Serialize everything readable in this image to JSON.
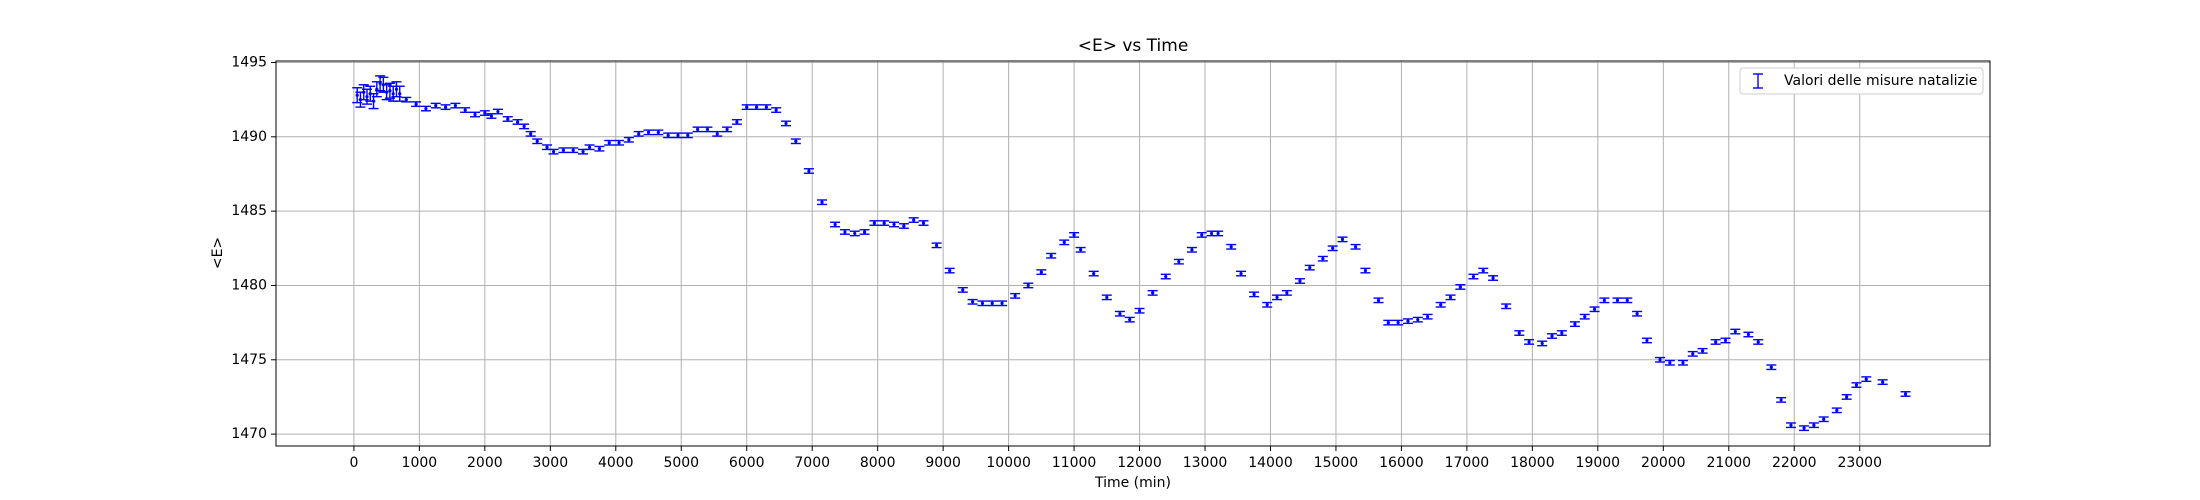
{
  "chart_data": {
    "type": "errorbar",
    "title": "<E> vs Time",
    "x_label": "Time (min)",
    "y_label": "<E>",
    "grid": true,
    "legend_position": "upper right",
    "xlim": [
      -1190,
      24990
    ],
    "ylim": [
      1469.2,
      1495.1
    ],
    "xticks": [
      0,
      1000,
      2000,
      3000,
      4000,
      5000,
      6000,
      7000,
      8000,
      9000,
      10000,
      11000,
      12000,
      13000,
      14000,
      15000,
      16000,
      17000,
      18000,
      19000,
      20000,
      21000,
      22000,
      23000
    ],
    "yticks": [
      1470,
      1475,
      1480,
      1485,
      1490,
      1495
    ],
    "series": [
      {
        "name": "Valori delle misure natalizie",
        "color": "#0000ff",
        "x": [
          50,
          100,
          150,
          200,
          250,
          300,
          350,
          400,
          450,
          500,
          550,
          600,
          650,
          700,
          800,
          950,
          1100,
          1250,
          1400,
          1550,
          1700,
          1850,
          2000,
          2100,
          2200,
          2350,
          2500,
          2600,
          2700,
          2800,
          2950,
          3050,
          3200,
          3350,
          3500,
          3600,
          3750,
          3900,
          4050,
          4200,
          4350,
          4500,
          4650,
          4800,
          4950,
          5100,
          5250,
          5400,
          5550,
          5700,
          5850,
          6000,
          6150,
          6300,
          6450,
          6600,
          6750,
          6950,
          7150,
          7350,
          7500,
          7650,
          7800,
          7950,
          8100,
          8250,
          8400,
          8550,
          8700,
          8900,
          9100,
          9300,
          9450,
          9600,
          9750,
          9900,
          10100,
          10300,
          10500,
          10650,
          10850,
          11000,
          11100,
          11300,
          11500,
          11700,
          11850,
          12000,
          12200,
          12400,
          12600,
          12800,
          12950,
          13100,
          13200,
          13400,
          13550,
          13750,
          13950,
          14100,
          14250,
          14450,
          14600,
          14800,
          14950,
          15100,
          15300,
          15450,
          15650,
          15800,
          15950,
          16100,
          16250,
          16400,
          16600,
          16750,
          16900,
          17100,
          17250,
          17400,
          17600,
          17800,
          17950,
          18150,
          18300,
          18450,
          18650,
          18800,
          18950,
          19100,
          19300,
          19450,
          19600,
          19750,
          19950,
          20100,
          20300,
          20450,
          20600,
          20800,
          20950,
          21100,
          21300,
          21450,
          21650,
          21800,
          21950,
          22150,
          22300,
          22450,
          22650,
          22800,
          22950,
          23100,
          23350,
          23700
        ],
        "values": [
          1492.8,
          1492.5,
          1493.0,
          1492.7,
          1492.9,
          1492.4,
          1493.2,
          1493.6,
          1493.5,
          1493.0,
          1493.1,
          1492.9,
          1493.2,
          1492.9,
          1492.5,
          1492.2,
          1491.9,
          1492.1,
          1492.0,
          1492.1,
          1491.8,
          1491.5,
          1491.6,
          1491.4,
          1491.7,
          1491.2,
          1491.0,
          1490.7,
          1490.2,
          1489.7,
          1489.3,
          1489.0,
          1489.1,
          1489.1,
          1489.0,
          1489.3,
          1489.2,
          1489.6,
          1489.6,
          1489.8,
          1490.2,
          1490.3,
          1490.3,
          1490.1,
          1490.1,
          1490.1,
          1490.5,
          1490.5,
          1490.2,
          1490.5,
          1491.0,
          1492.0,
          1492.0,
          1492.0,
          1491.8,
          1490.9,
          1489.7,
          1487.7,
          1485.6,
          1484.1,
          1483.6,
          1483.5,
          1483.6,
          1484.2,
          1484.2,
          1484.1,
          1484.0,
          1484.4,
          1484.2,
          1482.7,
          1481.0,
          1479.7,
          1478.9,
          1478.8,
          1478.8,
          1478.8,
          1479.3,
          1480.0,
          1480.9,
          1482.0,
          1482.9,
          1483.4,
          1482.4,
          1480.8,
          1479.2,
          1478.1,
          1477.7,
          1478.3,
          1479.5,
          1480.6,
          1481.6,
          1482.4,
          1483.4,
          1483.5,
          1483.5,
          1482.6,
          1480.8,
          1479.4,
          1478.7,
          1479.2,
          1479.5,
          1480.3,
          1481.2,
          1481.8,
          1482.5,
          1483.1,
          1482.6,
          1481.0,
          1479.0,
          1477.5,
          1477.5,
          1477.6,
          1477.7,
          1477.9,
          1478.7,
          1479.2,
          1479.9,
          1480.6,
          1481.0,
          1480.5,
          1478.6,
          1476.8,
          1476.2,
          1476.1,
          1476.6,
          1476.8,
          1477.4,
          1477.9,
          1478.4,
          1479.0,
          1479.0,
          1479.0,
          1478.1,
          1476.3,
          1475.0,
          1474.8,
          1474.8,
          1475.4,
          1475.6,
          1476.2,
          1476.3,
          1476.9,
          1476.7,
          1476.2,
          1474.5,
          1472.3,
          1470.6,
          1470.4,
          1470.6,
          1471.0,
          1471.6,
          1472.5,
          1473.3,
          1473.7,
          1473.5,
          1472.7
        ],
        "errors": [
          0.5,
          0.5,
          0.5,
          0.5,
          0.5,
          0.5,
          0.5,
          0.5,
          0.5,
          0.5,
          0.5,
          0.5,
          0.5,
          0.5,
          0.15,
          0.15,
          0.15,
          0.15,
          0.15,
          0.15,
          0.15,
          0.15,
          0.15,
          0.15,
          0.15,
          0.15,
          0.15,
          0.15,
          0.15,
          0.15,
          0.15,
          0.15,
          0.15,
          0.15,
          0.15,
          0.15,
          0.15,
          0.15,
          0.15,
          0.15,
          0.15,
          0.15,
          0.15,
          0.15,
          0.15,
          0.15,
          0.15,
          0.15,
          0.15,
          0.15,
          0.15,
          0.15,
          0.15,
          0.15,
          0.15,
          0.15,
          0.15,
          0.15,
          0.15,
          0.15,
          0.15,
          0.15,
          0.15,
          0.15,
          0.15,
          0.15,
          0.15,
          0.15,
          0.15,
          0.15,
          0.15,
          0.15,
          0.15,
          0.15,
          0.15,
          0.15,
          0.15,
          0.15,
          0.15,
          0.15,
          0.15,
          0.15,
          0.15,
          0.15,
          0.15,
          0.15,
          0.15,
          0.15,
          0.15,
          0.15,
          0.15,
          0.15,
          0.15,
          0.15,
          0.15,
          0.15,
          0.15,
          0.15,
          0.15,
          0.15,
          0.15,
          0.15,
          0.15,
          0.15,
          0.15,
          0.15,
          0.15,
          0.15,
          0.15,
          0.15,
          0.15,
          0.15,
          0.15,
          0.15,
          0.15,
          0.15,
          0.15,
          0.15,
          0.15,
          0.15,
          0.15,
          0.15,
          0.15,
          0.15,
          0.15,
          0.15,
          0.15,
          0.15,
          0.15,
          0.15,
          0.15,
          0.15,
          0.15,
          0.15,
          0.15,
          0.15,
          0.15,
          0.15,
          0.15,
          0.15,
          0.15,
          0.15,
          0.15,
          0.15,
          0.15,
          0.15,
          0.15,
          0.15,
          0.15,
          0.15,
          0.15,
          0.15,
          0.15,
          0.15,
          0.15,
          0.15
        ]
      }
    ]
  }
}
